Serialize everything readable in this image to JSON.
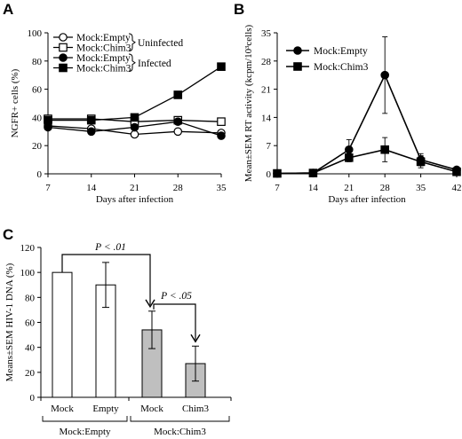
{
  "chart_data": [
    {
      "panel": "A",
      "type": "line",
      "x": [
        7,
        14,
        21,
        28,
        35
      ],
      "xlabel": "Days after infection",
      "ylabel": "NGFR+ cells (%)",
      "xlim": [
        7,
        35
      ],
      "ylim": [
        0,
        100
      ],
      "yticks": [
        0,
        20,
        40,
        60,
        80,
        100
      ],
      "grid": false,
      "legend_position": "top-left",
      "legend_groups": [
        {
          "label": "Uninfected",
          "series": [
            0,
            1
          ]
        },
        {
          "label": "Infected",
          "series": [
            2,
            3
          ]
        }
      ],
      "series": [
        {
          "name": "Mock:Empty",
          "marker": "circle-open",
          "values": [
            34,
            32,
            28,
            30,
            29
          ]
        },
        {
          "name": "Mock:Chim3",
          "marker": "square-open",
          "values": [
            39,
            39,
            37,
            38,
            37
          ]
        },
        {
          "name": "Mock:Empty",
          "marker": "circle-filled",
          "values": [
            33,
            30,
            33,
            37,
            27
          ]
        },
        {
          "name": "Mock:Chim3",
          "marker": "square-filled",
          "values": [
            38,
            38,
            40,
            56,
            76
          ]
        }
      ]
    },
    {
      "panel": "B",
      "type": "line",
      "x": [
        7,
        14,
        21,
        28,
        35,
        42
      ],
      "xlabel": "Days after infection",
      "ylabel": "Mean±SEM RT activity (kcpm/10³cells)",
      "xlim": [
        7,
        42
      ],
      "ylim": [
        0,
        35
      ],
      "yticks": [
        0,
        7,
        14,
        21,
        28,
        35
      ],
      "grid": false,
      "legend_position": "top-left",
      "series": [
        {
          "name": "Mock:Empty",
          "marker": "circle-filled",
          "values": [
            0.1,
            0.2,
            6.0,
            24.5,
            3.5,
            1.0
          ],
          "errors": [
            0,
            0,
            2.5,
            9.5,
            1.5,
            0.6
          ]
        },
        {
          "name": "Mock:Chim3",
          "marker": "square-filled",
          "values": [
            0.1,
            0.2,
            4.0,
            6.0,
            3.0,
            0.5
          ],
          "errors": [
            0,
            0,
            1.0,
            3.0,
            1.5,
            0.5
          ]
        }
      ]
    },
    {
      "panel": "C",
      "type": "bar",
      "categories": [
        "Mock",
        "Empty",
        "Mock",
        "Chim3"
      ],
      "groups": [
        {
          "label": "Mock:Empty",
          "members": [
            0,
            1
          ]
        },
        {
          "label": "Mock:Chim3",
          "members": [
            2,
            3
          ]
        }
      ],
      "values": [
        100,
        90,
        54,
        27
      ],
      "errors": [
        0,
        18,
        15,
        14
      ],
      "fills": [
        "#ffffff",
        "#ffffff",
        "#bfbfbf",
        "#bfbfbf"
      ],
      "ylabel": "Means±SEM HIV-1 DNA (%)",
      "ylim": [
        0,
        120
      ],
      "yticks": [
        0,
        20,
        40,
        60,
        80,
        100,
        120
      ],
      "grid": false,
      "annotations": [
        {
          "text": "P < .01",
          "from": 0,
          "to": 2
        },
        {
          "text": "P < .05",
          "from": 2,
          "to": 3
        }
      ]
    }
  ],
  "panels": {
    "A": "A",
    "B": "B",
    "C": "C"
  }
}
